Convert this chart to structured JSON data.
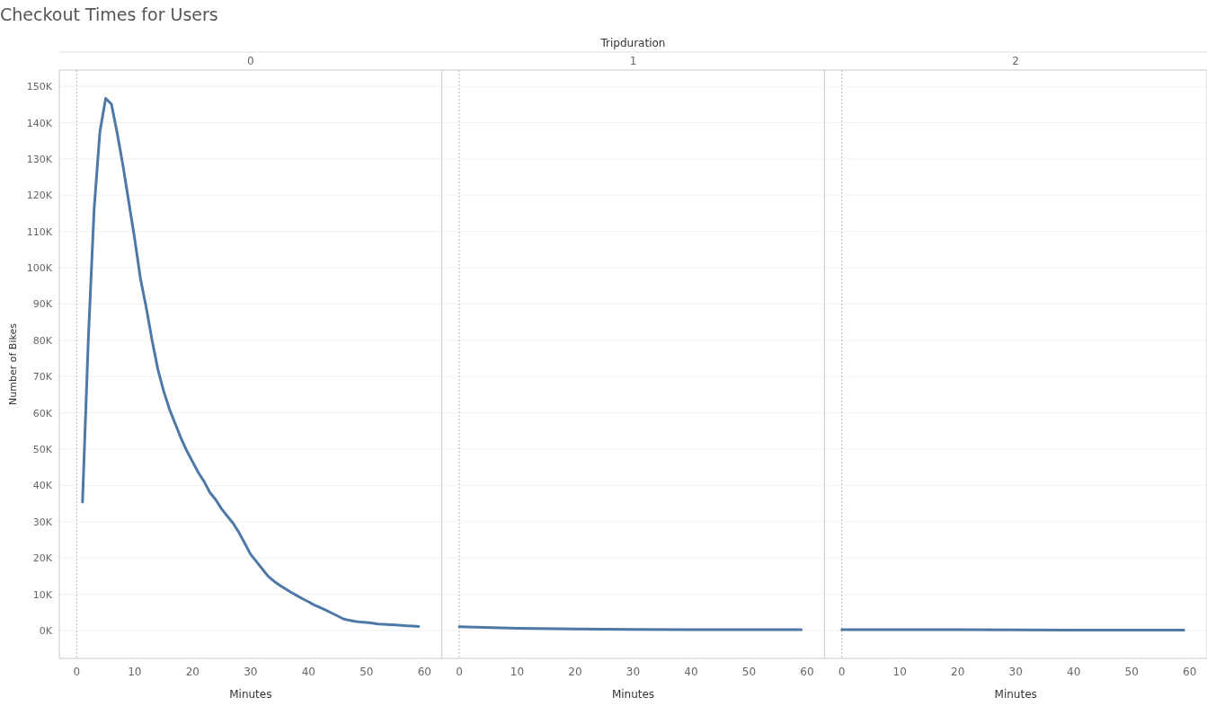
{
  "chart_data": [
    {
      "type": "line",
      "title": "Checkout Times for Users",
      "annotations": [
        "Tripduration"
      ],
      "subtitle": "0",
      "xlabel": "Minutes",
      "ylabel": "Number of Bikes",
      "grid": "y",
      "line_style": "solid",
      "xlim": [
        -3,
        63
      ],
      "xticks": [
        0,
        10,
        20,
        30,
        40,
        50,
        60
      ],
      "ylim": [
        -7700,
        154500
      ],
      "yticks": [
        {
          "value": 0,
          "label": "0K"
        },
        {
          "value": 10000,
          "label": "10K"
        },
        {
          "value": 20000,
          "label": "20K"
        },
        {
          "value": 30000,
          "label": "30K"
        },
        {
          "value": 40000,
          "label": "40K"
        },
        {
          "value": 50000,
          "label": "50K"
        },
        {
          "value": 60000,
          "label": "60K"
        },
        {
          "value": 70000,
          "label": "70K"
        },
        {
          "value": 80000,
          "label": "80K"
        },
        {
          "value": 90000,
          "label": "90K"
        },
        {
          "value": 100000,
          "label": "100K"
        },
        {
          "value": 110000,
          "label": "110K"
        },
        {
          "value": 120000,
          "label": "120K"
        },
        {
          "value": 130000,
          "label": "130K"
        },
        {
          "value": 140000,
          "label": "140K"
        },
        {
          "value": 150000,
          "label": "150K"
        }
      ],
      "ref_lines": [
        {
          "axis": "x",
          "value": 0,
          "color": "#bbbbbb",
          "line_style": "dotted"
        }
      ],
      "series": [
        {
          "color": "#4e79a7",
          "x": [
            1,
            2,
            3,
            4,
            5,
            6,
            7,
            8,
            9,
            10,
            11,
            12,
            13,
            14,
            15,
            16,
            17,
            18,
            19,
            20,
            21,
            22,
            23,
            24,
            25,
            26,
            27,
            28,
            29,
            30,
            31,
            32,
            33,
            34,
            35,
            36,
            37,
            38,
            39,
            40,
            41,
            42,
            43,
            44,
            45,
            46,
            47,
            48,
            49,
            50,
            51,
            52,
            53,
            54,
            55,
            56,
            57,
            58,
            59
          ],
          "values": [
            35400,
            80000,
            116000,
            137500,
            146700,
            145100,
            137000,
            128000,
            118000,
            108000,
            97000,
            89000,
            80000,
            72000,
            66000,
            61000,
            57000,
            53000,
            49500,
            46500,
            43500,
            41000,
            38000,
            36000,
            33500,
            31500,
            29500,
            27000,
            24000,
            21000,
            19000,
            17000,
            15000,
            13600,
            12500,
            11500,
            10500,
            9600,
            8700,
            7900,
            7000,
            6300,
            5600,
            4800,
            4000,
            3200,
            2800,
            2500,
            2300,
            2200,
            2000,
            1800,
            1700,
            1600,
            1500,
            1400,
            1300,
            1200,
            1100
          ]
        }
      ]
    },
    {
      "type": "line",
      "subtitle": "1",
      "xlabel": "Minutes",
      "grid": "y",
      "line_style": "solid",
      "tick_labels": "x",
      "xlim": [
        -3,
        63
      ],
      "xticks": [
        0,
        10,
        20,
        30,
        40,
        50,
        60
      ],
      "ylim": [
        -7700,
        154500
      ],
      "yticks": [
        {
          "value": 0,
          "label": null
        },
        {
          "value": 10000,
          "label": null
        },
        {
          "value": 20000,
          "label": null
        },
        {
          "value": 30000,
          "label": null
        },
        {
          "value": 40000,
          "label": null
        },
        {
          "value": 50000,
          "label": null
        },
        {
          "value": 60000,
          "label": null
        },
        {
          "value": 70000,
          "label": null
        },
        {
          "value": 80000,
          "label": null
        },
        {
          "value": 90000,
          "label": null
        },
        {
          "value": 100000,
          "label": null
        },
        {
          "value": 110000,
          "label": null
        },
        {
          "value": 120000,
          "label": null
        },
        {
          "value": 130000,
          "label": null
        },
        {
          "value": 140000,
          "label": null
        },
        {
          "value": 150000,
          "label": null
        }
      ],
      "ref_lines": [
        {
          "axis": "x",
          "value": 0,
          "color": "#bbbbbb",
          "line_style": "dotted"
        }
      ],
      "series": [
        {
          "color": "#4e79a7",
          "x": [
            0,
            10,
            20,
            30,
            40,
            50,
            59
          ],
          "values": [
            1000,
            600,
            400,
            300,
            200,
            200,
            200
          ]
        }
      ]
    },
    {
      "type": "line",
      "subtitle": "2",
      "xlabel": "Minutes",
      "grid": "y",
      "line_style": "solid",
      "tick_labels": "x",
      "xlim": [
        -3,
        63
      ],
      "xticks": [
        0,
        10,
        20,
        30,
        40,
        50,
        60
      ],
      "ylim": [
        -7700,
        154500
      ],
      "yticks": [
        {
          "value": 0,
          "label": null
        },
        {
          "value": 10000,
          "label": null
        },
        {
          "value": 20000,
          "label": null
        },
        {
          "value": 30000,
          "label": null
        },
        {
          "value": 40000,
          "label": null
        },
        {
          "value": 50000,
          "label": null
        },
        {
          "value": 60000,
          "label": null
        },
        {
          "value": 70000,
          "label": null
        },
        {
          "value": 80000,
          "label": null
        },
        {
          "value": 90000,
          "label": null
        },
        {
          "value": 100000,
          "label": null
        },
        {
          "value": 110000,
          "label": null
        },
        {
          "value": 120000,
          "label": null
        },
        {
          "value": 130000,
          "label": null
        },
        {
          "value": 140000,
          "label": null
        },
        {
          "value": 150000,
          "label": null
        }
      ],
      "ref_lines": [
        {
          "axis": "x",
          "value": 0,
          "color": "#bbbbbb",
          "line_style": "dotted"
        }
      ],
      "series": [
        {
          "color": "#4e79a7",
          "x": [
            0,
            20,
            40,
            59
          ],
          "values": [
            200,
            200,
            100,
            100
          ]
        }
      ]
    }
  ]
}
